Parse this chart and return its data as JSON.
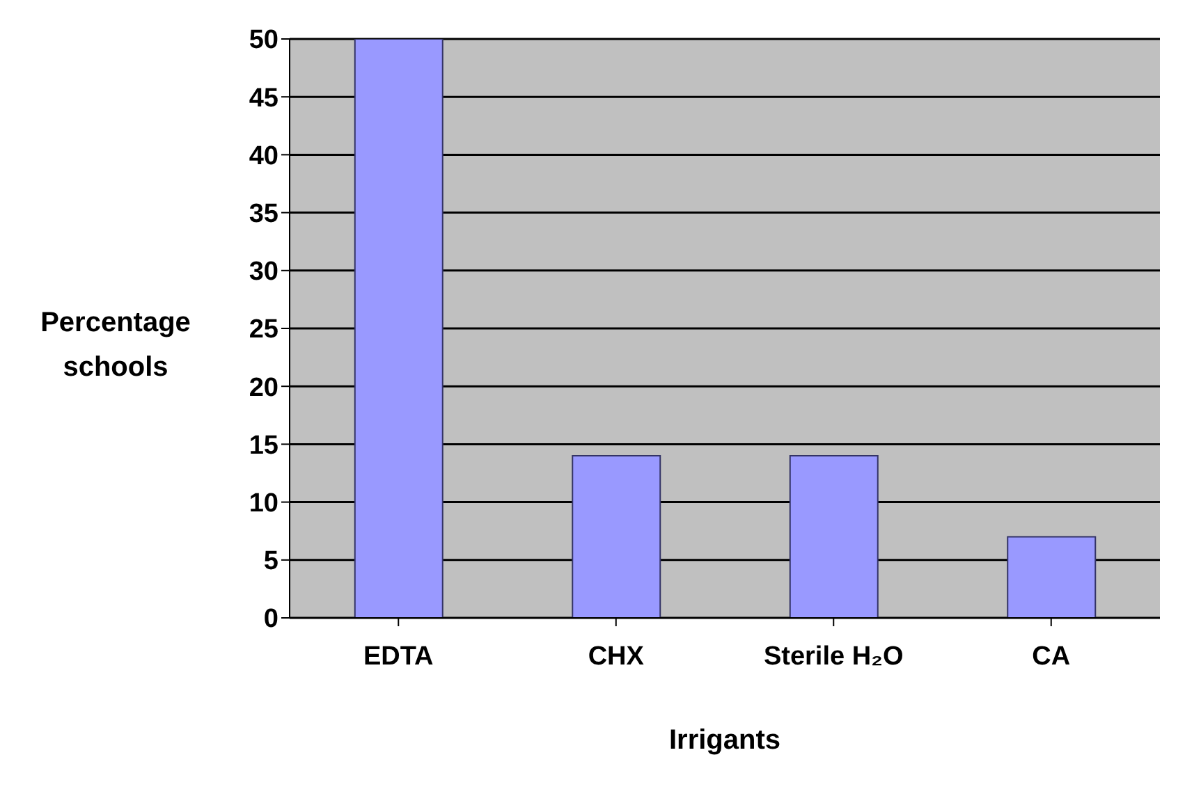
{
  "chart_data": {
    "type": "bar",
    "categories": [
      "EDTA",
      "CHX",
      "Sterile H₂O",
      "CA"
    ],
    "values": [
      50,
      14,
      14,
      7
    ],
    "color": "#9999ff",
    "xlabel": "Irrigants",
    "ylabel": "Percentage schools",
    "ylim": [
      0,
      50
    ],
    "yticks": [
      0,
      5,
      10,
      15,
      20,
      25,
      30,
      35,
      40,
      45,
      50
    ],
    "grid": "y"
  }
}
